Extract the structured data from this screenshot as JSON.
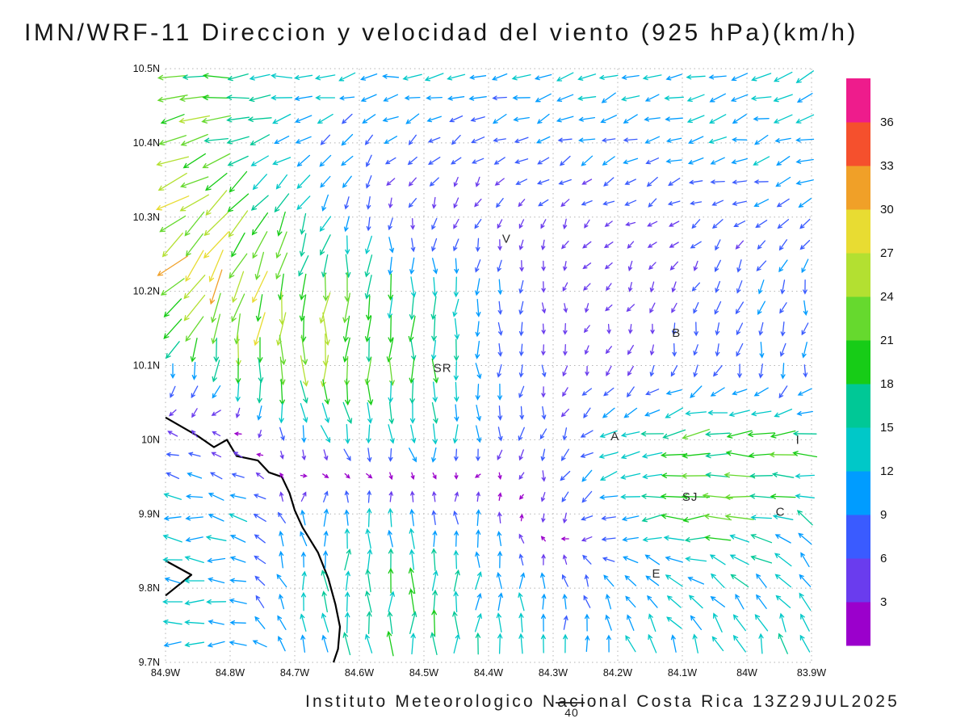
{
  "chart_data": {
    "type": "vector_field",
    "title": "IMN/WRF-11 Direccion y velocidad del viento (925 hPa)(km/h)",
    "footer": "Instituto Meteorologico Nacional Costa Rica  13Z29JUL2025",
    "reference_vector": {
      "label": "40"
    },
    "x_axis": {
      "labels": [
        "84.9W",
        "84.8W",
        "84.7W",
        "84.6W",
        "84.5W",
        "84.4W",
        "84.3W",
        "84.2W",
        "84.1W",
        "84W",
        "83.9W"
      ],
      "values": [
        84.9,
        84.8,
        84.7,
        84.6,
        84.5,
        84.4,
        84.3,
        84.2,
        84.1,
        84.0,
        83.9
      ]
    },
    "y_axis": {
      "labels": [
        "10.5N",
        "10.4N",
        "10.3N",
        "10.2N",
        "10.1N",
        "10N",
        "9.9N",
        "9.8N",
        "9.7N"
      ],
      "values": [
        10.5,
        10.4,
        10.3,
        10.2,
        10.1,
        10.0,
        9.9,
        9.8,
        9.7
      ]
    },
    "lon_range": [
      84.9,
      83.9
    ],
    "lat_range": [
      10.5,
      9.7
    ],
    "colorbar": {
      "values": [
        3,
        6,
        9,
        12,
        15,
        18,
        21,
        24,
        27,
        30,
        33,
        36
      ],
      "colors_bottom_to_top": [
        "#9b00cc",
        "#6a3cee",
        "#3a5bff",
        "#009cff",
        "#00c8c8",
        "#00c896",
        "#17cc17",
        "#66d92e",
        "#b3e031",
        "#e8dc32",
        "#f0a028",
        "#f5502d",
        "#ee1c8c"
      ]
    },
    "stations": [
      {
        "label": "V",
        "lon": 84.372,
        "lat": 10.271
      },
      {
        "label": "B",
        "lon": 84.109,
        "lat": 10.144
      },
      {
        "label": "SR",
        "lon": 84.471,
        "lat": 10.097
      },
      {
        "label": "A",
        "lon": 84.204,
        "lat": 10.005
      },
      {
        "label": "SJ",
        "lon": 84.088,
        "lat": 9.923
      },
      {
        "label": "C",
        "lon": 83.948,
        "lat": 9.903
      },
      {
        "label": "E",
        "lon": 84.14,
        "lat": 9.82
      },
      {
        "label": "I",
        "lon": 83.921,
        "lat": 10.0
      }
    ],
    "coastlines": [
      [
        [
          84.9,
          10.03
        ],
        [
          84.85,
          10.005
        ],
        [
          84.825,
          9.99
        ],
        [
          84.805,
          10.0
        ],
        [
          84.79,
          9.978
        ],
        [
          84.757,
          9.972
        ],
        [
          84.74,
          9.956
        ],
        [
          84.72,
          9.95
        ],
        [
          84.708,
          9.928
        ],
        [
          84.7,
          9.905
        ],
        [
          84.688,
          9.882
        ],
        [
          84.664,
          9.848
        ],
        [
          84.648,
          9.813
        ],
        [
          84.637,
          9.778
        ],
        [
          84.63,
          9.748
        ],
        [
          84.633,
          9.718
        ],
        [
          84.64,
          9.7
        ]
      ],
      [
        [
          84.9,
          9.837
        ],
        [
          84.86,
          9.818
        ],
        [
          84.9,
          9.79
        ]
      ]
    ],
    "wind_grid": {
      "lons": [
        84.9,
        84.8,
        84.7,
        84.6,
        84.5,
        84.4,
        84.3,
        84.2,
        84.1,
        84.0,
        83.9
      ],
      "lats": [
        10.5,
        10.4,
        10.3,
        10.2,
        10.1,
        10.0,
        9.9,
        9.8,
        9.7
      ],
      "dir_deg_mathconv": [
        [
          185,
          183,
          185,
          190,
          192,
          193,
          195,
          197,
          198,
          200,
          200
        ],
        [
          192,
          200,
          212,
          218,
          215,
          210,
          205,
          203,
          200,
          198,
          196
        ],
        [
          212,
          228,
          245,
          255,
          258,
          250,
          235,
          220,
          212,
          205,
          200
        ],
        [
          228,
          248,
          262,
          268,
          270,
          266,
          256,
          242,
          250,
          255,
          258
        ],
        [
          252,
          262,
          268,
          270,
          272,
          270,
          264,
          252,
          255,
          262,
          266
        ],
        [
          150,
          120,
          295,
          282,
          276,
          268,
          255,
          205,
          186,
          181,
          178
        ],
        [
          176,
          172,
          95,
          85,
          88,
          95,
          262,
          188,
          183,
          179,
          148
        ],
        [
          179,
          176,
          98,
          92,
          89,
          86,
          95,
          135,
          148,
          138,
          122
        ],
        [
          181,
          179,
          102,
          94,
          90,
          89,
          92,
          99,
          108,
          104,
          100
        ]
      ],
      "speed_kmh": [
        [
          20,
          18,
          14,
          12,
          12,
          12,
          12,
          12,
          12,
          13,
          13
        ],
        [
          24,
          20,
          11,
          8,
          8,
          8,
          9,
          9,
          10,
          11,
          12
        ],
        [
          27,
          26,
          13,
          7,
          5,
          5,
          5,
          5,
          6,
          8,
          9
        ],
        [
          26,
          28,
          24,
          19,
          16,
          9,
          5,
          4,
          6,
          8,
          9
        ],
        [
          10,
          20,
          24,
          21,
          18,
          10,
          5,
          5,
          7,
          9,
          9
        ],
        [
          6,
          5,
          9,
          14,
          14,
          10,
          7,
          13,
          20,
          21,
          17
        ],
        [
          12,
          13,
          9,
          12,
          10,
          9,
          6,
          12,
          19,
          20,
          13
        ],
        [
          12,
          12,
          12,
          16,
          18,
          12,
          10,
          9,
          13,
          13,
          12
        ],
        [
          12,
          12,
          13,
          16,
          18,
          15,
          12,
          12,
          14,
          15,
          14
        ]
      ]
    }
  }
}
